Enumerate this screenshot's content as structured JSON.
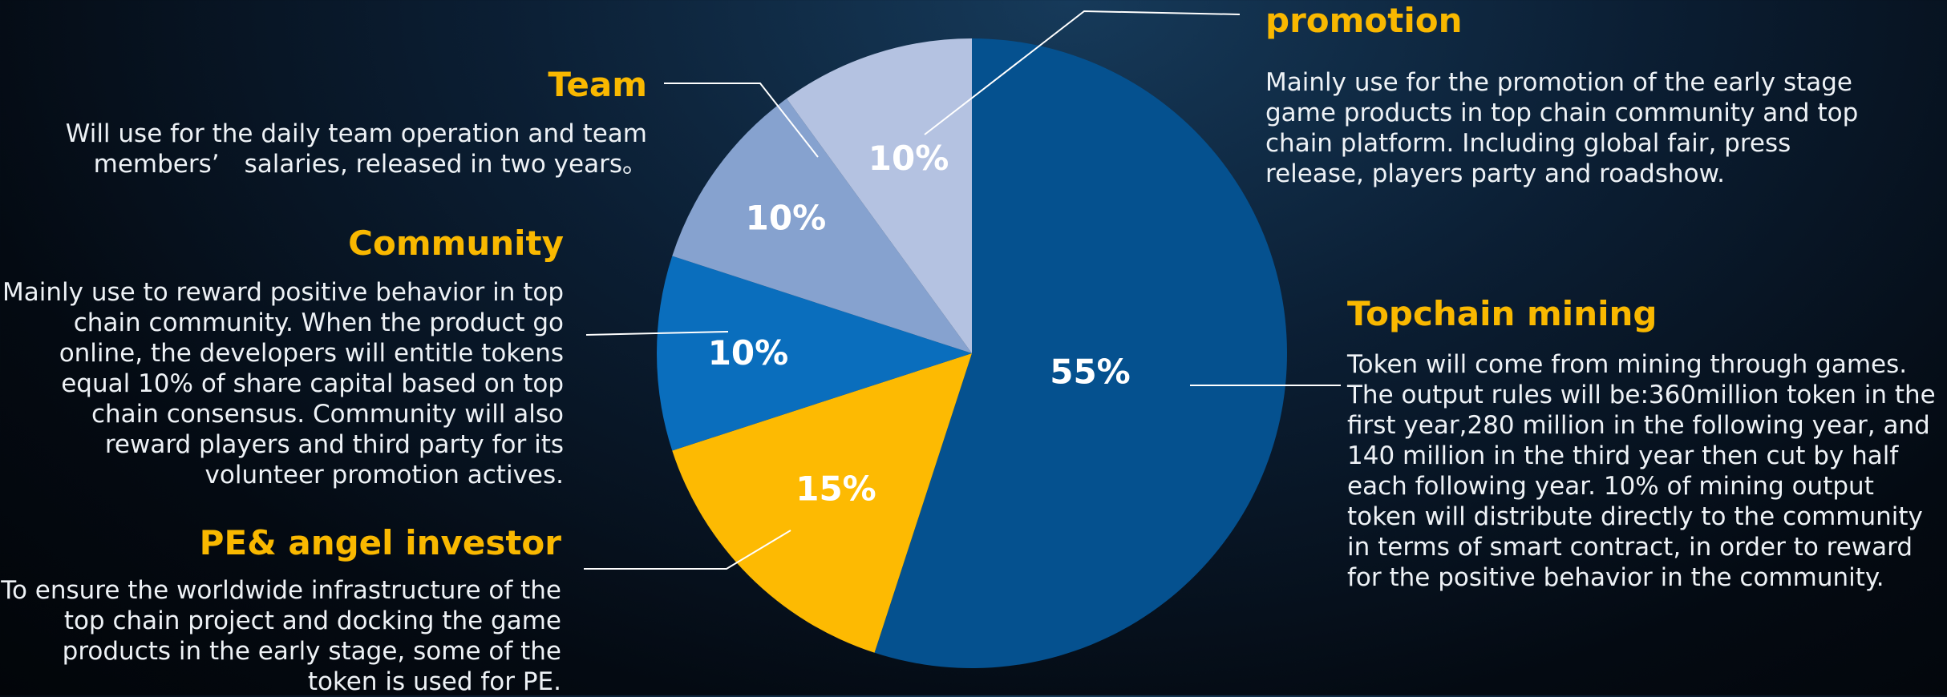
{
  "chart_data": {
    "type": "pie",
    "title": "",
    "slices": [
      {
        "name": "Topchain mining",
        "value": 55,
        "label": "55%",
        "color": "#05518f"
      },
      {
        "name": "PE& angel investor",
        "value": 15,
        "label": "15%",
        "color": "#fdba02"
      },
      {
        "name": "Community",
        "value": 10,
        "label": "10%",
        "color": "#0a6ebd"
      },
      {
        "name": "Team",
        "value": 10,
        "label": "10%",
        "color": "#86a2cf"
      },
      {
        "name": "promotion",
        "value": 10,
        "label": "10%",
        "color": "#b4c2e1"
      }
    ],
    "annotations": {
      "team": {
        "title": "Team",
        "text": "Will use for the daily team operation and team members’　salaries, released in two years。"
      },
      "community": {
        "title": "Community",
        "text": "Mainly use to reward positive behavior in top chain community. When the product go online, the developers will entitle tokens equal 10% of share capital based on top chain consensus. Community will also reward players and third party for its volunteer promotion actives."
      },
      "pe": {
        "title": "PE& angel investor",
        "text": "To ensure the worldwide infrastructure of the top chain project and docking the game products in the early stage, some of the token is used for PE."
      },
      "promotion": {
        "title": "promotion",
        "text": "Mainly use for the promotion of the early stage game products in top chain community and top chain platform. Including global fair, press release, players party and roadshow."
      },
      "mining": {
        "title": "Topchain mining",
        "text": "Token will come from mining through games. The output rules will be:360million token in the first year,280 million in the following year, and 140 million in the third year then cut by half each following year. 10% of mining output token will distribute directly  to the community in terms of smart contract, in order to reward for the positive behavior in the community."
      }
    }
  }
}
